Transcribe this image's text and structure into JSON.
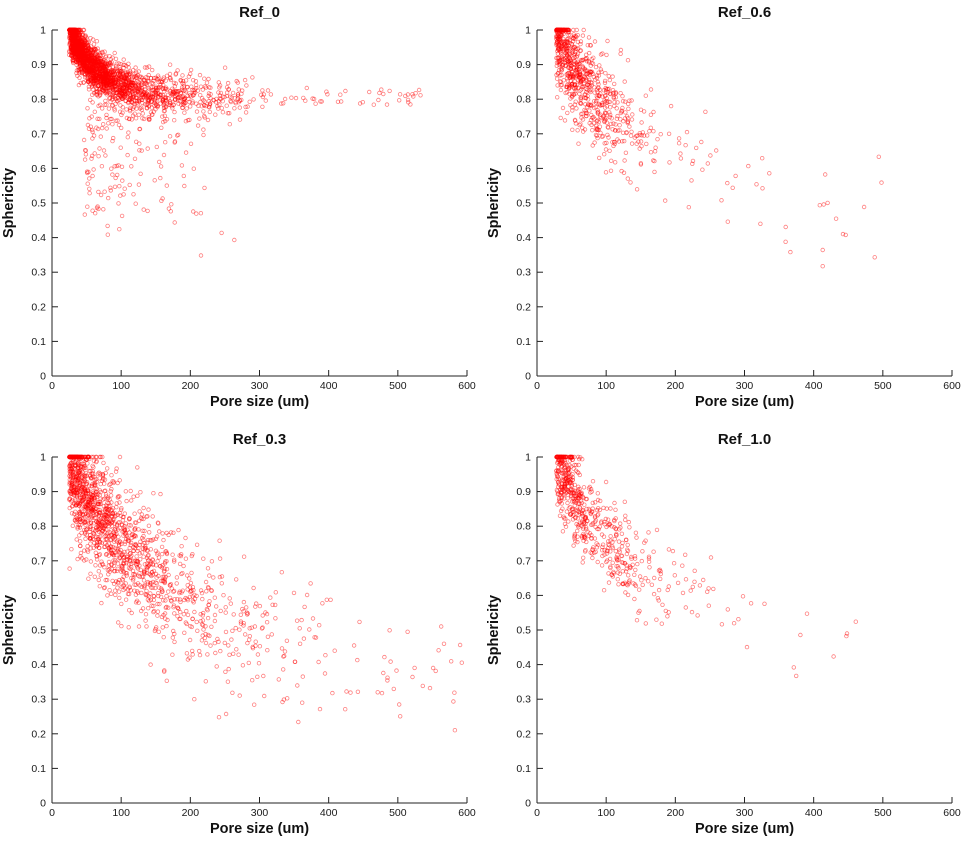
{
  "figure": {
    "rows": 2,
    "cols": 2,
    "background": "#ffffff",
    "order": [
      "Ref_0",
      "Ref_0.6",
      "Ref_0.3",
      "Ref_1.0"
    ]
  },
  "chart_data": [
    {
      "type": "scatter",
      "title": "Ref_0",
      "xlabel": "Pore size (um)",
      "ylabel": "Sphericity",
      "xlim": [
        0,
        600
      ],
      "ylim": [
        0,
        1
      ],
      "xticks": [
        0,
        100,
        200,
        300,
        400,
        500,
        600
      ],
      "yticks": [
        0,
        0.1,
        0.2,
        0.3,
        0.4,
        0.5,
        0.6,
        0.7,
        0.8,
        0.9,
        1
      ],
      "marker": {
        "shape": "circle-open",
        "color": "#ff0000",
        "radius": 1.8,
        "opacity": 0.5
      },
      "seed": 11,
      "description": "Dense wedge at small pore size converging to a horizontal band near sphericity 0.8 that extends sparsely to ~530 um; scattered points below down to ~0.35.",
      "components": [
        {
          "n": 2200,
          "x": {
            "dist": "exp",
            "min": 25,
            "scale": 60,
            "max": 310
          },
          "y": {
            "dist": "expdecay",
            "base": 0.805,
            "amp": 0.19,
            "tau": 45,
            "sd": 0.03
          }
        },
        {
          "n": 170,
          "x": {
            "dist": "exp",
            "min": 45,
            "scale": 60,
            "max": 270
          },
          "y": {
            "dist": "power",
            "top": 0.78,
            "range": 0.35,
            "exp": 1.4,
            "sd": 0.02
          }
        },
        {
          "n": 55,
          "x": {
            "dist": "uniform",
            "min": 230,
            "max": 535
          },
          "y": {
            "dist": "band",
            "center": 0.806,
            "sd": 0.012
          }
        },
        {
          "n": 8,
          "x": {
            "dist": "uniform",
            "min": 90,
            "max": 300
          },
          "y": {
            "dist": "power",
            "top": 0.5,
            "range": 0.16,
            "exp": 1,
            "sd": 0.01
          }
        }
      ]
    },
    {
      "type": "scatter",
      "title": "Ref_0.6",
      "xlabel": "Pore size (um)",
      "ylabel": "Sphericity",
      "xlim": [
        0,
        600
      ],
      "ylim": [
        0,
        1
      ],
      "xticks": [
        0,
        100,
        200,
        300,
        400,
        500,
        600
      ],
      "yticks": [
        0,
        0.1,
        0.2,
        0.3,
        0.4,
        0.5,
        0.6,
        0.7,
        0.8,
        0.9,
        1
      ],
      "marker": {
        "shape": "circle-open",
        "color": "#ff0000",
        "radius": 1.8,
        "opacity": 0.5
      },
      "seed": 22,
      "description": "Dense cluster near 30-150 um between 0.6 and 1.0, declining trend, sparse points out to ~500 um down to ~0.3.",
      "components": [
        {
          "n": 800,
          "x": {
            "dist": "exp",
            "min": 28,
            "scale": 48,
            "max": 310
          },
          "y": {
            "dist": "expdecay",
            "base": 0.58,
            "amp": 0.41,
            "tau": 95,
            "sd": 0.07
          }
        },
        {
          "n": 22,
          "x": {
            "dist": "uniform",
            "min": 270,
            "max": 500
          },
          "y": {
            "dist": "power",
            "top": 0.62,
            "range": 0.3,
            "exp": 1,
            "sd": 0.02
          }
        }
      ]
    },
    {
      "type": "scatter",
      "title": "Ref_0.3",
      "xlabel": "Pore size (um)",
      "ylabel": "Sphericity",
      "xlim": [
        0,
        600
      ],
      "ylim": [
        0,
        1
      ],
      "xticks": [
        0,
        100,
        200,
        300,
        400,
        500,
        600
      ],
      "yticks": [
        0,
        0.1,
        0.2,
        0.3,
        0.4,
        0.5,
        0.6,
        0.7,
        0.8,
        0.9,
        1
      ],
      "marker": {
        "shape": "circle-open",
        "color": "#ff0000",
        "radius": 1.8,
        "opacity": 0.5
      },
      "seed": 33,
      "description": "Broad declining scatter: dense wedge 25-150 um (0.6-1.0) spreading out to ~590 um with sphericity down to ~0.22.",
      "components": [
        {
          "n": 1500,
          "x": {
            "dist": "exp",
            "min": 25,
            "scale": 85,
            "max": 595
          },
          "y": {
            "dist": "expdecay",
            "base": 0.42,
            "amp": 0.56,
            "tau": 140,
            "sd": 0.085
          }
        },
        {
          "n": 45,
          "x": {
            "dist": "uniform",
            "min": 200,
            "max": 590
          },
          "y": {
            "dist": "power",
            "top": 0.45,
            "range": 0.2,
            "exp": 1,
            "sd": 0.02
          }
        }
      ]
    },
    {
      "type": "scatter",
      "title": "Ref_1.0",
      "xlabel": "Pore size (um)",
      "ylabel": "Sphericity",
      "xlim": [
        0,
        600
      ],
      "ylim": [
        0,
        1
      ],
      "xticks": [
        0,
        100,
        200,
        300,
        400,
        500,
        600
      ],
      "yticks": [
        0,
        0.1,
        0.2,
        0.3,
        0.4,
        0.5,
        0.6,
        0.7,
        0.8,
        0.9,
        1
      ],
      "marker": {
        "shape": "circle-open",
        "color": "#ff0000",
        "radius": 1.8,
        "opacity": 0.5
      },
      "seed": 44,
      "description": "Compact declining cluster 30-250 um between 0.5 and 1.0, few sparse points out to ~460 um around 0.37-0.55.",
      "components": [
        {
          "n": 620,
          "x": {
            "dist": "exp",
            "min": 28,
            "scale": 55,
            "max": 340
          },
          "y": {
            "dist": "expdecay",
            "base": 0.58,
            "amp": 0.42,
            "tau": 85,
            "sd": 0.065
          }
        },
        {
          "n": 11,
          "x": {
            "dist": "uniform",
            "min": 270,
            "max": 465
          },
          "y": {
            "dist": "power",
            "top": 0.56,
            "range": 0.2,
            "exp": 1,
            "sd": 0.02
          }
        }
      ]
    }
  ]
}
